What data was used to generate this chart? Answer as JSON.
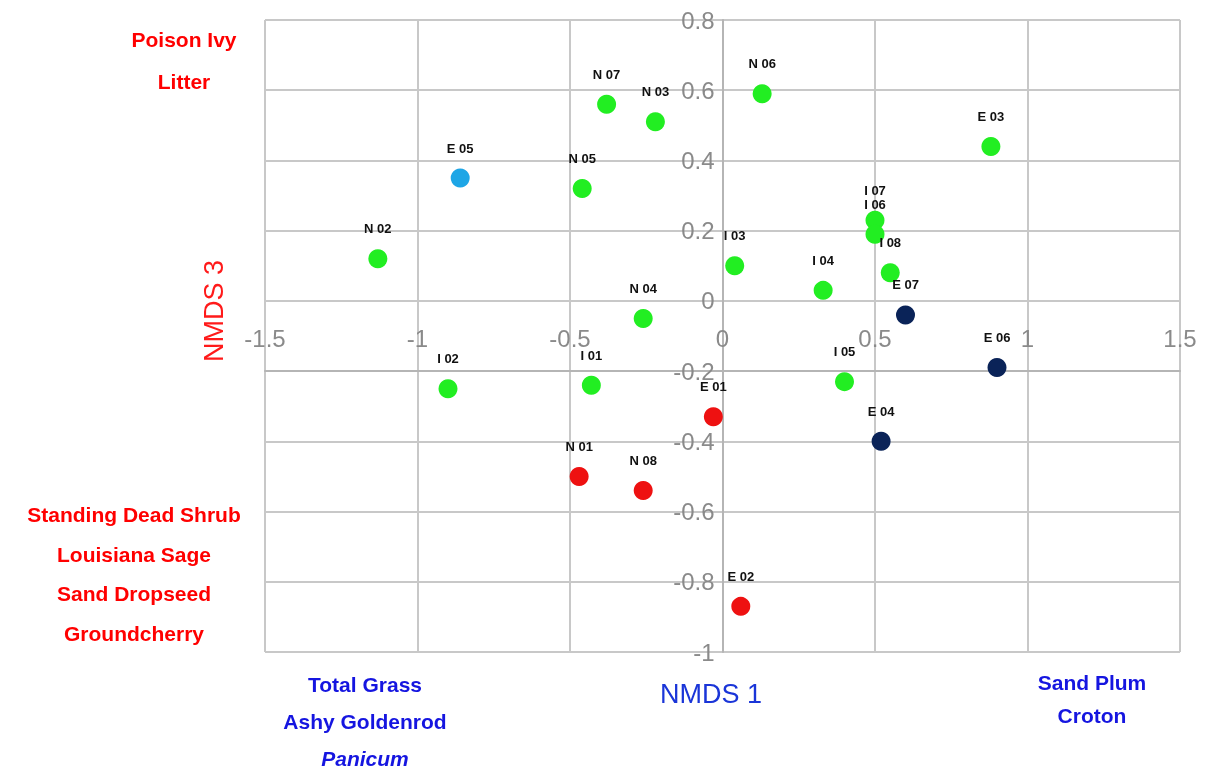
{
  "chart_data": {
    "type": "scatter",
    "xlabel": "NMDS 1",
    "ylabel": "NMDS 3",
    "xlim": [
      -1.5,
      1.5
    ],
    "xticks": [
      -1.5,
      -1,
      -0.5,
      0,
      0.5,
      1,
      1.5
    ],
    "ylim": [
      -1,
      0.8
    ],
    "yticks": [
      -1,
      -0.8,
      -0.6,
      -0.4,
      -0.2,
      0,
      0.2,
      0.4,
      0.6,
      0.8
    ],
    "grid": true,
    "marker": "circle",
    "series": [
      {
        "color": "#22ee22",
        "x": [
          -1.13,
          -0.46,
          -0.38,
          -0.22,
          0.13,
          0.88,
          0.5,
          0.5,
          0.04,
          0.33,
          0.55,
          -0.26,
          -0.9,
          -0.43,
          0.4
        ],
        "values": [
          0.12,
          0.32,
          0.56,
          0.51,
          0.59,
          0.44,
          0.23,
          0.19,
          0.1,
          0.03,
          0.08,
          -0.05,
          -0.25,
          -0.24,
          -0.23
        ],
        "value_labels": [
          "N 02",
          "N 05",
          "N 07",
          "N 03",
          "N 06",
          "E 03",
          "I 07",
          "I 06",
          "I 03",
          "I 04",
          "I 08",
          "N 04",
          "I 02",
          "I 01",
          "I 05"
        ]
      },
      {
        "color": "#1ea6e6",
        "x": [
          -0.86
        ],
        "values": [
          0.35
        ],
        "value_labels": [
          "E 05"
        ]
      },
      {
        "color": "#0a2358",
        "x": [
          0.6,
          0.9,
          0.52
        ],
        "values": [
          -0.04,
          -0.19,
          -0.4
        ],
        "value_labels": [
          "E 07",
          "E 06",
          "E 04"
        ]
      },
      {
        "color": "#ee1111",
        "x": [
          -0.03,
          -0.47,
          -0.26,
          0.06
        ],
        "values": [
          -0.33,
          -0.5,
          -0.54,
          -0.87
        ],
        "value_labels": [
          "E 01",
          "N 01",
          "N 08",
          "E 02"
        ]
      }
    ],
    "annotations": [
      "Poison Ivy\nLitter",
      "Standing Dead Shrub\nLouisiana Sage\nSand Dropseed\nGroundcherry",
      "Total Grass\nAshy Goldenrod\nPanicum",
      "Sand Plum\nCroton"
    ]
  }
}
